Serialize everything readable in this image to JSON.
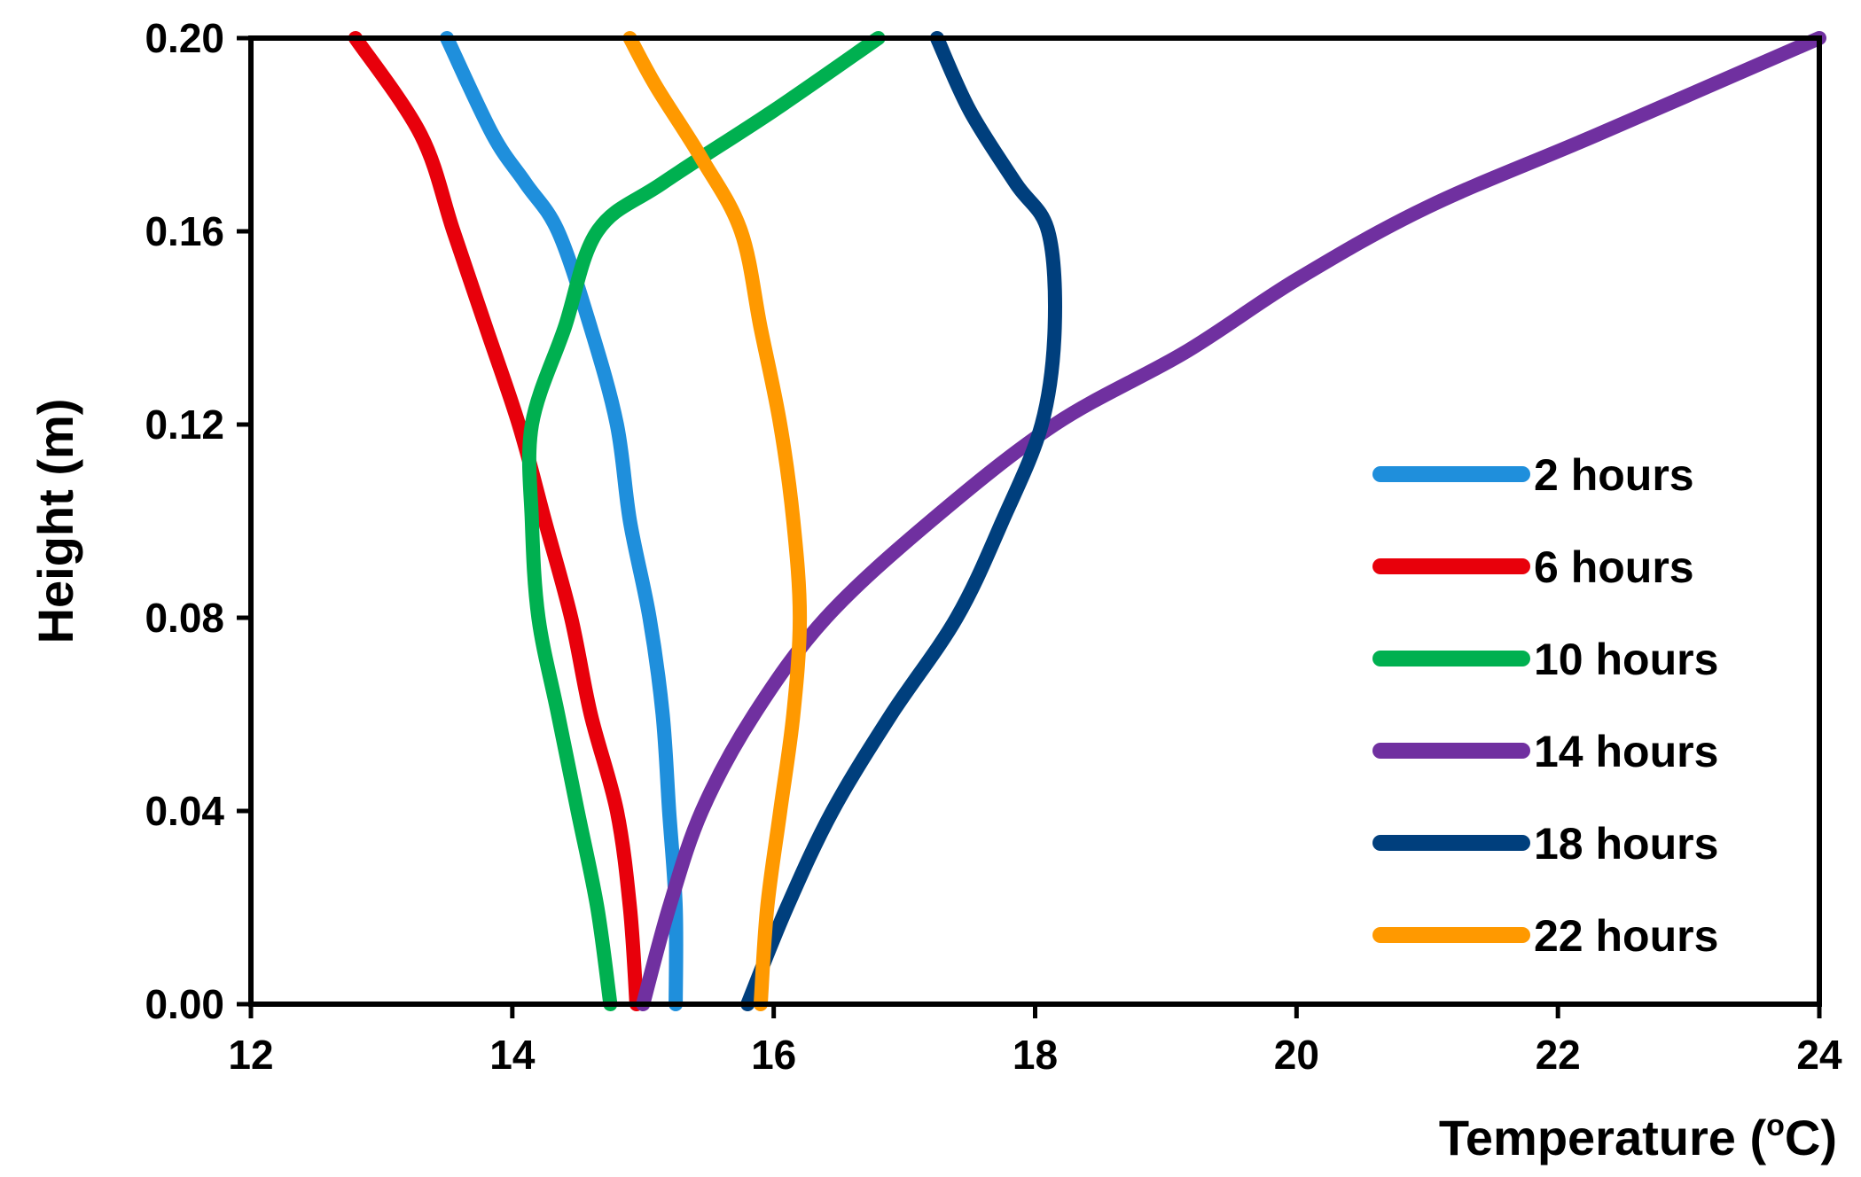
{
  "chart_data": {
    "type": "line",
    "title": "",
    "xlabel": "Temperature (",
    "xlabel_sup": "o",
    "xlabel_suffix": "C)",
    "ylabel": "Height (m)",
    "xlim": [
      12,
      24
    ],
    "ylim": [
      0,
      0.2
    ],
    "xticks": [
      "12",
      "14",
      "16",
      "18",
      "20",
      "22",
      "24"
    ],
    "yticks": [
      "0.00",
      "0.04",
      "0.08",
      "0.12",
      "0.16",
      "0.20"
    ],
    "grid": false,
    "legend_position": "right",
    "series": [
      {
        "name": "2 hours",
        "color": "#1f8fdc",
        "points": [
          [
            15.25,
            0.0
          ],
          [
            15.25,
            0.02
          ],
          [
            15.2,
            0.04
          ],
          [
            15.15,
            0.06
          ],
          [
            15.05,
            0.08
          ],
          [
            14.9,
            0.1
          ],
          [
            14.8,
            0.12
          ],
          [
            14.6,
            0.14
          ],
          [
            14.35,
            0.16
          ],
          [
            14.1,
            0.17
          ],
          [
            13.85,
            0.18
          ],
          [
            13.5,
            0.2
          ]
        ]
      },
      {
        "name": "6 hours",
        "color": "#e8000b",
        "points": [
          [
            14.95,
            0.0
          ],
          [
            14.9,
            0.02
          ],
          [
            14.8,
            0.04
          ],
          [
            14.6,
            0.06
          ],
          [
            14.45,
            0.08
          ],
          [
            14.25,
            0.1
          ],
          [
            14.05,
            0.12
          ],
          [
            13.8,
            0.14
          ],
          [
            13.55,
            0.16
          ],
          [
            13.3,
            0.18
          ],
          [
            12.8,
            0.2
          ]
        ]
      },
      {
        "name": "10 hours",
        "color": "#00b050",
        "points": [
          [
            14.75,
            0.0
          ],
          [
            14.65,
            0.02
          ],
          [
            14.5,
            0.04
          ],
          [
            14.35,
            0.06
          ],
          [
            14.2,
            0.08
          ],
          [
            14.15,
            0.1
          ],
          [
            14.15,
            0.12
          ],
          [
            14.4,
            0.14
          ],
          [
            14.65,
            0.16
          ],
          [
            15.15,
            0.17
          ],
          [
            16.0,
            0.185
          ],
          [
            16.8,
            0.2
          ]
        ]
      },
      {
        "name": "14 hours",
        "color": "#7030a0",
        "points": [
          [
            15.0,
            0.0
          ],
          [
            15.2,
            0.02
          ],
          [
            15.45,
            0.04
          ],
          [
            15.85,
            0.06
          ],
          [
            16.4,
            0.08
          ],
          [
            17.2,
            0.1
          ],
          [
            18.15,
            0.12
          ],
          [
            19.15,
            0.135
          ],
          [
            20.0,
            0.15
          ],
          [
            21.0,
            0.165
          ],
          [
            22.3,
            0.18
          ],
          [
            24.0,
            0.2
          ]
        ]
      },
      {
        "name": "18 hours",
        "color": "#003f7d",
        "points": [
          [
            15.8,
            0.0
          ],
          [
            16.1,
            0.02
          ],
          [
            16.45,
            0.04
          ],
          [
            16.9,
            0.06
          ],
          [
            17.4,
            0.08
          ],
          [
            17.75,
            0.1
          ],
          [
            18.05,
            0.12
          ],
          [
            18.15,
            0.14
          ],
          [
            18.1,
            0.16
          ],
          [
            17.85,
            0.17
          ],
          [
            17.5,
            0.185
          ],
          [
            17.25,
            0.2
          ]
        ]
      },
      {
        "name": "22 hours",
        "color": "#ff9900",
        "points": [
          [
            15.9,
            0.0
          ],
          [
            15.95,
            0.02
          ],
          [
            16.05,
            0.04
          ],
          [
            16.15,
            0.06
          ],
          [
            16.2,
            0.08
          ],
          [
            16.15,
            0.1
          ],
          [
            16.05,
            0.12
          ],
          [
            15.9,
            0.14
          ],
          [
            15.75,
            0.16
          ],
          [
            15.45,
            0.175
          ],
          [
            15.1,
            0.19
          ],
          [
            14.9,
            0.2
          ]
        ]
      }
    ]
  }
}
